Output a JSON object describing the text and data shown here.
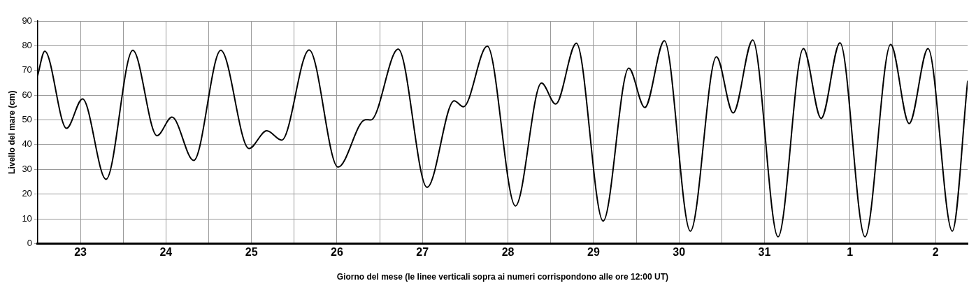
{
  "chart_data": {
    "type": "line",
    "xlabel": "Giorno del mese (le linee verticali sopra ai numeri corrispondono alle ore 12:00 UT)",
    "ylabel": "Livello del mare (cm)",
    "x": [
      "--01-23T00:00",
      "--01-23T02:00",
      "--01-23T08:06",
      "--01-23T12:36",
      "--01-23T19:12",
      "--01-24T02:42",
      "--01-24T09:30",
      "--01-24T13:42",
      "--01-24T19:48",
      "--01-25T03:24",
      "--01-25T11:18",
      "--01-25T16:18",
      "--01-25T20:30",
      "--01-26T04:12",
      "--01-26T12:18",
      "--01-26T20:00",
      "--01-26T21:30",
      "--01-27T05:12",
      "--01-27T13:18",
      "--01-27T20:54",
      "--01-27T23:30",
      "--01-28T06:12",
      "--01-28T14:06",
      "--01-28T21:24",
      "--01-29T01:24",
      "--01-29T07:12",
      "--01-29T14:42",
      "--01-29T21:54",
      "--01-30T02:24",
      "--01-30T07:54",
      "--01-30T15:12",
      "--01-30T22:30",
      "--01-31T03:12",
      "--01-31T08:42",
      "--01-31T15:48",
      "--01-31T22:54",
      "--02-01T03:54",
      "--02-01T09:12",
      "--02-01T16:12",
      "--02-01T23:24",
      "--02-02T04:36",
      "--02-02T09:54",
      "--02-02T16:42",
      "--02-02T21:00"
    ],
    "series": [
      {
        "color": "#000000",
        "values": [
          68,
          77.8,
          46.6,
          58.5,
          26,
          78.1,
          43.6,
          51.1,
          33.6,
          78.1,
          38.4,
          45.6,
          41.8,
          78.3,
          30.9,
          50.1,
          50,
          78.6,
          22.7,
          57.7,
          55.3,
          79.8,
          15.2,
          64.9,
          56.4,
          81,
          9.1,
          70.9,
          55,
          82,
          5,
          75.5,
          52.8,
          82.3,
          2.7,
          78.8,
          50.6,
          81.2,
          2.7,
          80.5,
          48.5,
          78.8,
          5,
          65.6
        ]
      }
    ],
    "xlim": [
      "--01-23T00:00",
      "--02-02T21:00"
    ],
    "xticks": [
      {
        "value": "--01-23T00:00",
        "label": null
      },
      {
        "value": "--01-23T12:00",
        "label": "23"
      },
      {
        "value": "--01-24T00:00",
        "label": null
      },
      {
        "value": "--01-24T12:00",
        "label": "24"
      },
      {
        "value": "--01-25T00:00",
        "label": null
      },
      {
        "value": "--01-25T12:00",
        "label": "25"
      },
      {
        "value": "--01-26T00:00",
        "label": null
      },
      {
        "value": "--01-26T12:00",
        "label": "26"
      },
      {
        "value": "--01-27T00:00",
        "label": null
      },
      {
        "value": "--01-27T12:00",
        "label": "27"
      },
      {
        "value": "--01-28T00:00",
        "label": null
      },
      {
        "value": "--01-28T12:00",
        "label": "28"
      },
      {
        "value": "--01-29T00:00",
        "label": null
      },
      {
        "value": "--01-29T12:00",
        "label": "29"
      },
      {
        "value": "--01-30T00:00",
        "label": null
      },
      {
        "value": "--01-30T12:00",
        "label": "30"
      },
      {
        "value": "--01-31T00:00",
        "label": null
      },
      {
        "value": "--01-31T12:00",
        "label": "31"
      },
      {
        "value": "--02-01T00:00",
        "label": null
      },
      {
        "value": "--02-01T12:00",
        "label": "1"
      },
      {
        "value": "--02-02T00:00",
        "label": null
      },
      {
        "value": "--02-02T12:00",
        "label": "2"
      }
    ],
    "ylim": [
      0,
      90
    ],
    "yticks": [
      0,
      10,
      20,
      30,
      40,
      50,
      60,
      70,
      80,
      90
    ],
    "grid": true,
    "legend": false,
    "marker": "none",
    "line_style": "solid"
  }
}
